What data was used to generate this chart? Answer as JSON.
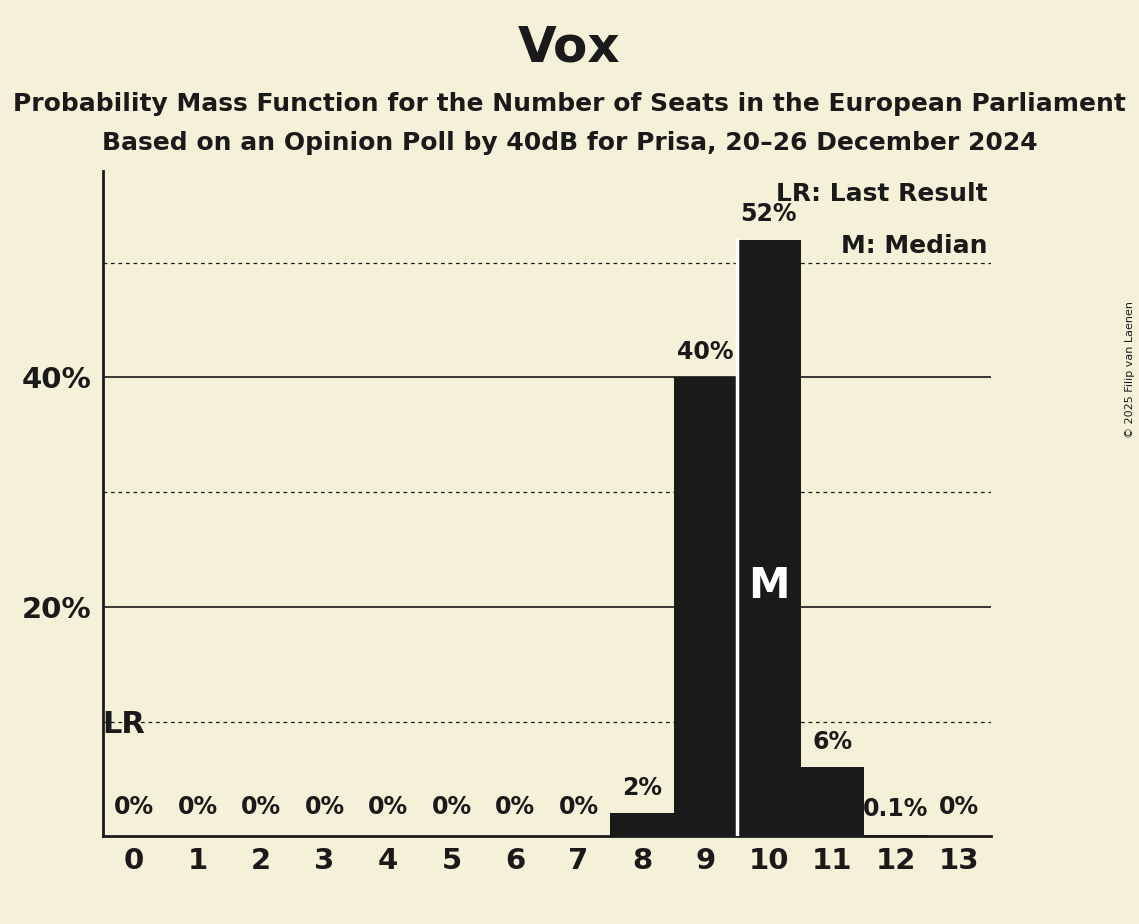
{
  "title": "Vox",
  "subtitle1": "Probability Mass Function for the Number of Seats in the European Parliament",
  "subtitle2": "Based on an Opinion Poll by 40dB for Prisa, 20–26 December 2024",
  "copyright": "© 2025 Filip van Laenen",
  "categories": [
    0,
    1,
    2,
    3,
    4,
    5,
    6,
    7,
    8,
    9,
    10,
    11,
    12,
    13
  ],
  "values": [
    0,
    0,
    0,
    0,
    0,
    0,
    0,
    0,
    2,
    40,
    52,
    6,
    0.1,
    0
  ],
  "bar_labels": [
    "0%",
    "0%",
    "0%",
    "0%",
    "0%",
    "0%",
    "0%",
    "0%",
    "2%",
    "40%",
    "52%",
    "6%",
    "0.1%",
    "0%"
  ],
  "bar_color": "#1a1a1a",
  "background_color": "#f5f1d8",
  "label_color": "#1a1a1a",
  "ylim": [
    0,
    58
  ],
  "solid_gridlines": [
    20,
    40
  ],
  "dotted_gridlines": [
    10,
    30,
    50
  ],
  "median_bar": 10,
  "lr_bar": 9,
  "legend_lr": "LR: Last Result",
  "legend_m": "M: Median",
  "title_fontsize": 36,
  "subtitle_fontsize": 18,
  "bar_label_fontsize": 17,
  "axis_tick_fontsize": 21,
  "ytick_label_positions": [
    20,
    40
  ],
  "ytick_labels": [
    "20%",
    "40%"
  ],
  "legend_fontsize": 18,
  "lr_text_fontsize": 22,
  "m_label_fontsize": 30,
  "copyright_fontsize": 8
}
